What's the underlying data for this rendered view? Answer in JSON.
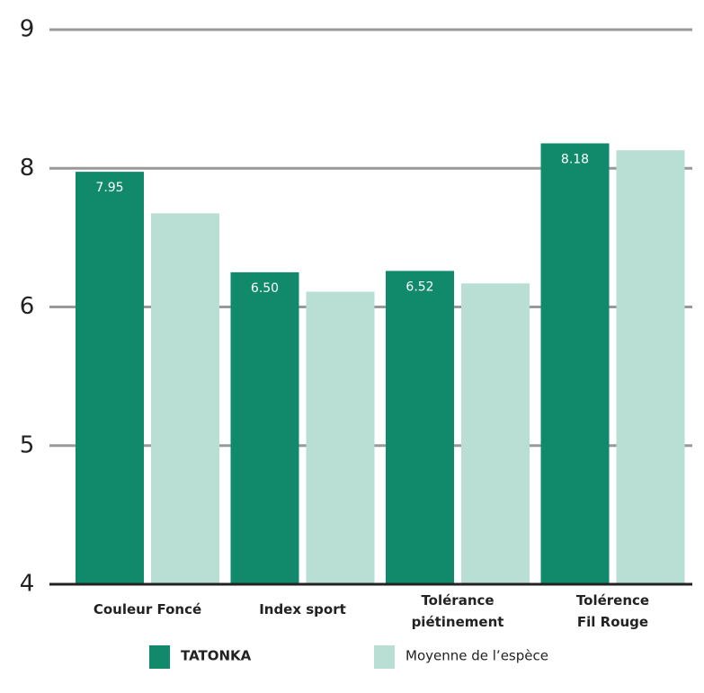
{
  "chart_data": {
    "type": "bar",
    "categories": [
      [
        "Couleur Foncé"
      ],
      [
        "Index sport"
      ],
      [
        "Tolérance",
        "piétinement"
      ],
      [
        "Tolérence",
        "Fil Rouge"
      ]
    ],
    "series": [
      {
        "name": "TATONKA",
        "color": "#11896b",
        "values": [
          7.95,
          6.5,
          6.52,
          8.18
        ],
        "value_labels": [
          "7.95",
          "6.50",
          "6.52",
          "8.18"
        ]
      },
      {
        "name": "Moyenne de l’espèce",
        "color": "#b9ded3",
        "values": [
          7.35,
          6.22,
          6.34,
          8.13
        ]
      }
    ],
    "ylim": [
      4,
      9
    ],
    "yticks": [
      4,
      5,
      6,
      8,
      9
    ],
    "grid": true
  }
}
